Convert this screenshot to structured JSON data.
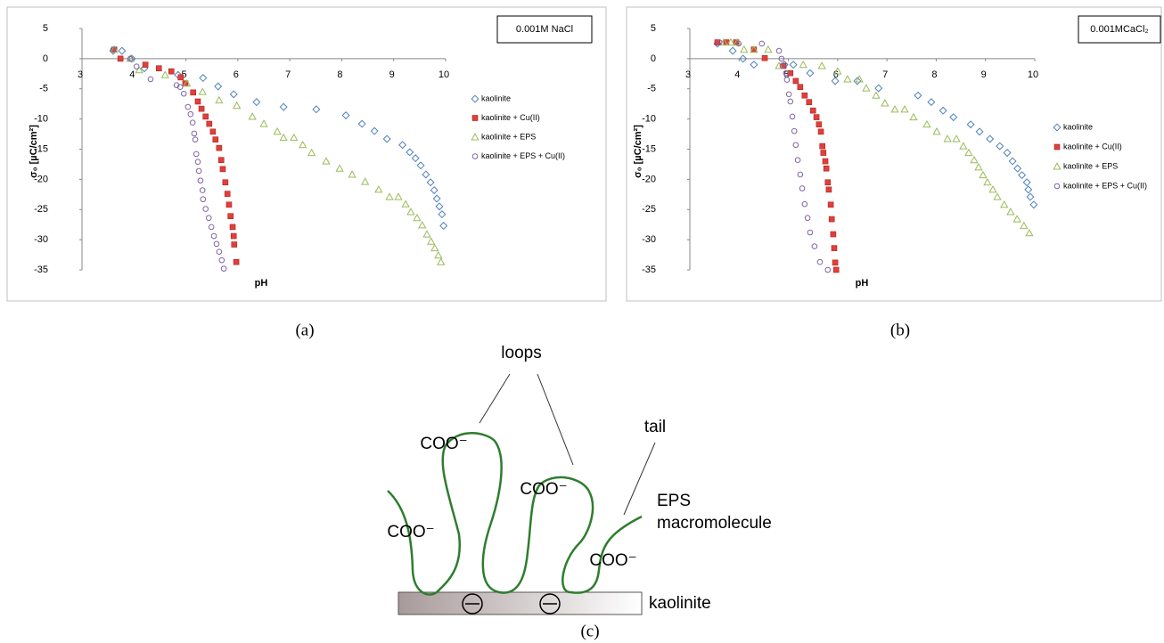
{
  "chart_data": [
    {
      "type": "scatter",
      "panel_label": "(a)",
      "annotation": "0.001M NaCl",
      "xlabel": "pH",
      "ylabel": "σ₀ [µC/cm²]",
      "xlim": [
        3,
        10
      ],
      "ylim": [
        -35,
        5
      ],
      "xticks": [
        3,
        4,
        5,
        6,
        7,
        8,
        9,
        10
      ],
      "yticks": [
        5,
        0,
        -5,
        -10,
        -15,
        -20,
        -25,
        -30,
        -35
      ],
      "grid": false,
      "series": [
        {
          "name": "kaolinite",
          "color": "#4f81bd",
          "marker": "diamond",
          "x": [
            3.6,
            3.77,
            3.96,
            4.2,
            4.85,
            5.33,
            5.62,
            5.92,
            6.36,
            6.88,
            7.51,
            8.08,
            8.39,
            8.63,
            8.87,
            9.17,
            9.31,
            9.42,
            9.52,
            9.62,
            9.71,
            9.78,
            9.83,
            9.88,
            9.93,
            9.96
          ],
          "values": [
            1.3,
            1.3,
            0,
            -1.6,
            -2.7,
            -3.2,
            -4.6,
            -5.9,
            -7.2,
            -8.0,
            -8.4,
            -9.4,
            -10.8,
            -12.0,
            -13.3,
            -14.3,
            -15.5,
            -16.5,
            -17.7,
            -19.2,
            -20.5,
            -21.8,
            -23.2,
            -24.5,
            -25.8,
            -27.7
          ]
        },
        {
          "name": "kaolinite + Cu(II)",
          "color": "#e0403a",
          "marker": "square",
          "x": [
            3.62,
            3.74,
            4.22,
            4.48,
            4.72,
            4.9,
            4.99,
            5.14,
            5.23,
            5.3,
            5.38,
            5.45,
            5.52,
            5.57,
            5.64,
            5.68,
            5.71,
            5.76,
            5.8,
            5.83,
            5.86,
            5.9,
            5.92,
            5.93,
            5.97
          ],
          "values": [
            1.5,
            0,
            -1.0,
            -1.6,
            -2.1,
            -3.1,
            -4.1,
            -5.6,
            -7.1,
            -8.3,
            -9.6,
            -10.8,
            -12.1,
            -13.4,
            -14.8,
            -16.8,
            -18.3,
            -20.5,
            -22.4,
            -24.2,
            -26.1,
            -27.9,
            -29.4,
            -30.8,
            -33.7
          ]
        },
        {
          "name": "kaolinite + EPS",
          "color": "#9bbb59",
          "marker": "triangle",
          "x": [
            3.62,
            3.93,
            4.1,
            4.6,
            5.02,
            5.32,
            5.64,
            5.98,
            6.28,
            6.5,
            6.76,
            6.88,
            7.08,
            7.25,
            7.42,
            7.7,
            7.96,
            8.2,
            8.45,
            8.71,
            8.92,
            9.09,
            9.23,
            9.33,
            9.45,
            9.55,
            9.64,
            9.72,
            9.79,
            9.86,
            9.91
          ],
          "values": [
            1.5,
            0,
            -1.9,
            -2.7,
            -4.1,
            -5.5,
            -6.9,
            -7.8,
            -9.6,
            -10.8,
            -12.1,
            -13.1,
            -13.1,
            -14.3,
            -15.6,
            -17.0,
            -18.2,
            -19.2,
            -20.4,
            -21.7,
            -22.9,
            -22.9,
            -24.1,
            -25.4,
            -26.4,
            -27.6,
            -29.1,
            -30.3,
            -31.4,
            -32.6,
            -33.7
          ]
        },
        {
          "name": "kaolinite + EPS + Cu(II)",
          "color": "#8064a2",
          "marker": "circle",
          "x": [
            3.6,
            3.93,
            4.05,
            4.32,
            4.82,
            4.89,
            4.96,
            5.04,
            5.09,
            5.13,
            5.16,
            5.18,
            5.2,
            5.23,
            5.25,
            5.28,
            5.32,
            5.33,
            5.38,
            5.44,
            5.49,
            5.54,
            5.59,
            5.64,
            5.69,
            5.73
          ],
          "values": [
            1.5,
            0,
            -1.3,
            -3.4,
            -4.4,
            -4.7,
            -5.8,
            -8.0,
            -9.2,
            -10.6,
            -12.4,
            -13.4,
            -15.8,
            -17.1,
            -18.6,
            -20.2,
            -21.8,
            -23.3,
            -24.9,
            -26.4,
            -27.9,
            -29.4,
            -30.7,
            -32.0,
            -33.4,
            -34.8
          ]
        }
      ]
    },
    {
      "type": "scatter",
      "panel_label": "(b)",
      "annotation": "0.001MCaCl₂",
      "xlabel": "pH",
      "ylabel": "σ₀ [µC/cm²]",
      "xlim": [
        3,
        10
      ],
      "ylim": [
        -35,
        5
      ],
      "xticks": [
        3,
        4,
        5,
        6,
        7,
        8,
        9,
        10
      ],
      "yticks": [
        5,
        0,
        -5,
        -10,
        -15,
        -20,
        -25,
        -30,
        -35
      ],
      "grid": false,
      "series": [
        {
          "name": "kaolinite",
          "color": "#4f81bd",
          "marker": "diamond",
          "x": [
            3.56,
            3.87,
            4.08,
            4.3,
            4.92,
            5.1,
            5.44,
            5.95,
            6.4,
            6.83,
            7.63,
            7.9,
            8.14,
            8.35,
            8.7,
            8.88,
            9.09,
            9.29,
            9.44,
            9.55,
            9.65,
            9.74,
            9.84,
            9.87,
            9.91,
            9.98
          ],
          "values": [
            2.5,
            1.3,
            0,
            -1.0,
            -1.0,
            -1.0,
            -2.4,
            -3.7,
            -3.7,
            -4.9,
            -6.1,
            -7.2,
            -8.6,
            -9.7,
            -10.9,
            -12.1,
            -13.3,
            -14.5,
            -15.6,
            -17.0,
            -18.2,
            -19.3,
            -20.5,
            -21.7,
            -22.9,
            -24.2
          ]
        },
        {
          "name": "kaolinite + Cu(II)",
          "color": "#e0403a",
          "marker": "square",
          "x": [
            3.56,
            3.74,
            3.94,
            4.3,
            4.52,
            4.9,
            5.04,
            5.15,
            5.24,
            5.33,
            5.42,
            5.5,
            5.57,
            5.62,
            5.66,
            5.69,
            5.71,
            5.75,
            5.77,
            5.8,
            5.82,
            5.86,
            5.88,
            5.91,
            5.93,
            5.95,
            5.97
          ],
          "values": [
            2.7,
            2.7,
            2.7,
            1.5,
            0.1,
            -1.2,
            -2.4,
            -3.7,
            -4.7,
            -6.1,
            -7.2,
            -8.6,
            -9.7,
            -10.9,
            -12.1,
            -14.5,
            -15.6,
            -17.0,
            -18.2,
            -20.5,
            -21.7,
            -24.2,
            -26.6,
            -29.1,
            -31.4,
            -33.8,
            -35.0
          ]
        },
        {
          "name": "kaolinite + EPS",
          "color": "#9bbb59",
          "marker": "triangle",
          "x": [
            3.69,
            3.83,
            3.96,
            4.1,
            4.3,
            4.59,
            4.81,
            5.3,
            5.68,
            6.0,
            6.2,
            6.44,
            6.58,
            6.78,
            6.96,
            7.16,
            7.36,
            7.54,
            7.81,
            8.01,
            8.23,
            8.41,
            8.55,
            8.66,
            8.77,
            8.86,
            8.95,
            9.04,
            9.15,
            9.24,
            9.38,
            9.51,
            9.64,
            9.78,
            9.89
          ],
          "values": [
            2.7,
            2.7,
            2.7,
            1.5,
            1.5,
            1.5,
            -1.2,
            -1.0,
            -1.2,
            -2.1,
            -3.4,
            -3.4,
            -4.9,
            -6.1,
            -7.4,
            -8.4,
            -8.4,
            -9.7,
            -10.9,
            -12.1,
            -13.3,
            -13.3,
            -14.5,
            -15.6,
            -16.8,
            -18.0,
            -19.3,
            -20.5,
            -21.7,
            -22.9,
            -24.2,
            -25.4,
            -26.6,
            -27.7,
            -28.9
          ]
        },
        {
          "name": "kaolinite + EPS + Cu(II)",
          "color": "#8064a2",
          "marker": "circle",
          "x": [
            3.6,
            3.99,
            4.46,
            4.81,
            4.86,
            4.88,
            4.95,
            4.97,
            5.01,
            5.04,
            5.08,
            5.12,
            5.15,
            5.19,
            5.24,
            5.28,
            5.33,
            5.39,
            5.44,
            5.53,
            5.64,
            5.8
          ],
          "values": [
            2.7,
            2.5,
            2.5,
            1.3,
            0,
            -1.2,
            -2.4,
            -3.5,
            -5.9,
            -7.1,
            -9.6,
            -12.0,
            -14.3,
            -16.8,
            -19.2,
            -21.5,
            -24.1,
            -26.4,
            -28.8,
            -31.1,
            -33.7,
            -35.0
          ]
        }
      ]
    }
  ],
  "diagram": {
    "panel_label": "(c)",
    "loops": "loops",
    "tail": "tail",
    "groups": [
      "COO⁻",
      "COO⁻",
      "COO⁻",
      "COO⁻"
    ],
    "eps": "EPS",
    "macromolecule": "macromolecule",
    "surface": "kaolinite"
  }
}
